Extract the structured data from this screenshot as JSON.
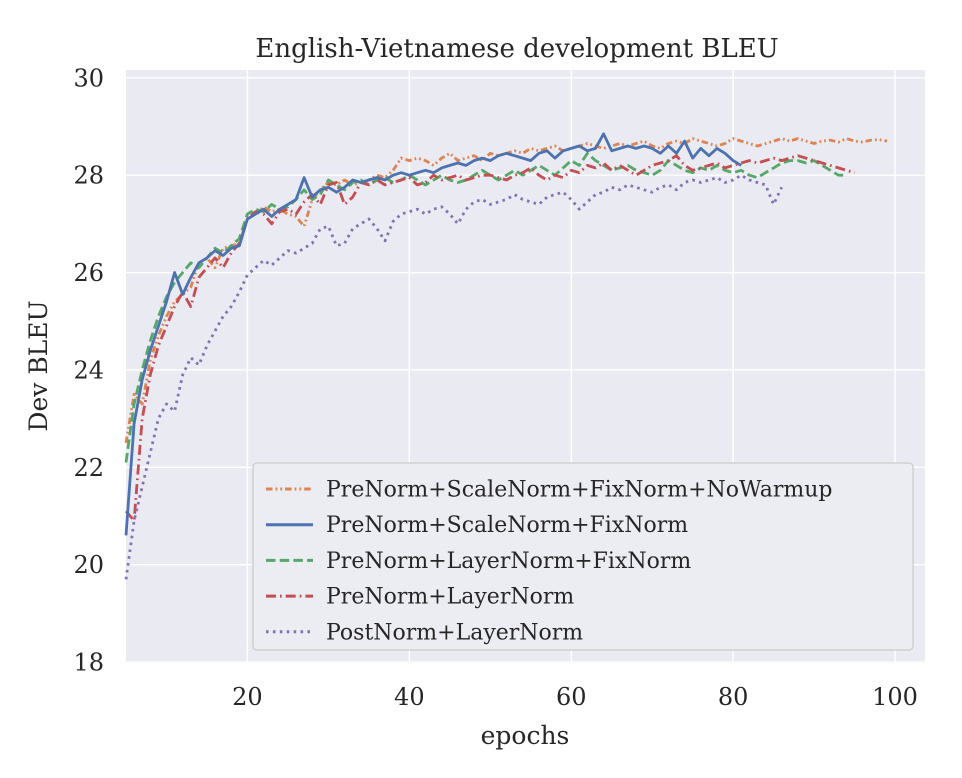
{
  "colors": {
    "figure_bg": "#ffffff",
    "plot_bg": "#eaeaf2",
    "grid": "#ffffff",
    "text": "#262626",
    "legend_bg": "#ececf3",
    "legend_border": "#cccccc"
  },
  "chart_data": {
    "type": "line",
    "title": "English-Vietnamese development BLEU",
    "xlabel": "epochs",
    "ylabel": "Dev BLEU",
    "xlim": [
      5,
      103.7
    ],
    "ylim": [
      17.98,
      30.16
    ],
    "xticks": [
      20,
      40,
      60,
      80,
      100
    ],
    "yticks": [
      18,
      20,
      22,
      24,
      26,
      28,
      30
    ],
    "grid": true,
    "legend_position": "inside lower center-right",
    "series": [
      {
        "name": "PreNorm+ScaleNorm+FixNorm+NoWarmup",
        "color": "#dd8452",
        "linestyle": "dashdotdot",
        "x_start": 5,
        "x_step": 1,
        "values": [
          22.5,
          23.5,
          23.3,
          24.2,
          24.7,
          25.1,
          25.4,
          25.55,
          25.7,
          26.2,
          26.3,
          26.1,
          26.5,
          26.55,
          26.6,
          27.1,
          27.2,
          27.35,
          27.25,
          27.3,
          27.2,
          27.15,
          26.95,
          27.5,
          27.7,
          27.85,
          27.8,
          27.9,
          27.8,
          27.85,
          27.9,
          28.0,
          27.95,
          28.1,
          28.35,
          28.3,
          28.35,
          28.3,
          28.2,
          28.35,
          28.45,
          28.3,
          28.35,
          28.4,
          28.3,
          28.45,
          28.4,
          28.45,
          28.5,
          28.45,
          28.55,
          28.5,
          28.55,
          28.6,
          28.5,
          28.55,
          28.6,
          28.65,
          28.6,
          28.55,
          28.6,
          28.65,
          28.6,
          28.65,
          28.7,
          28.6,
          28.55,
          28.65,
          28.7,
          28.65,
          28.75,
          28.7,
          28.65,
          28.6,
          28.65,
          28.75,
          28.7,
          28.65,
          28.6,
          28.65,
          28.7,
          28.75,
          28.7,
          28.75,
          28.7,
          28.65,
          28.7,
          28.72,
          28.68,
          28.75,
          28.7,
          28.68,
          28.72,
          28.73,
          28.7
        ]
      },
      {
        "name": "PreNorm+ScaleNorm+FixNorm",
        "color": "#4c72b0",
        "linestyle": "solid",
        "x_start": 5,
        "x_step": 1,
        "values": [
          20.6,
          22.9,
          23.8,
          24.4,
          24.9,
          25.4,
          26.0,
          25.55,
          25.9,
          26.2,
          26.3,
          26.45,
          26.35,
          26.5,
          26.55,
          27.1,
          27.2,
          27.3,
          27.15,
          27.3,
          27.4,
          27.5,
          27.95,
          27.55,
          27.7,
          27.75,
          27.65,
          27.75,
          27.9,
          27.85,
          27.9,
          27.95,
          27.9,
          28.0,
          28.05,
          28.0,
          28.05,
          28.1,
          28.05,
          28.15,
          28.2,
          28.25,
          28.2,
          28.3,
          28.35,
          28.3,
          28.4,
          28.45,
          28.4,
          28.35,
          28.3,
          28.45,
          28.5,
          28.35,
          28.5,
          28.55,
          28.6,
          28.5,
          28.55,
          28.85,
          28.5,
          28.55,
          28.6,
          28.55,
          28.6,
          28.55,
          28.45,
          28.6,
          28.45,
          28.7,
          28.35,
          28.55,
          28.4,
          28.55,
          28.45,
          28.3,
          28.2
        ]
      },
      {
        "name": "PreNorm+LayerNorm+FixNorm",
        "color": "#55a868",
        "linestyle": "dashed",
        "x_start": 5,
        "x_step": 1,
        "values": [
          22.1,
          23.3,
          24.0,
          24.6,
          25.1,
          25.5,
          25.8,
          26.0,
          26.2,
          26.1,
          26.3,
          26.5,
          26.4,
          26.55,
          26.7,
          27.2,
          27.3,
          27.25,
          27.4,
          27.3,
          27.35,
          27.5,
          27.7,
          27.5,
          27.6,
          27.9,
          27.8,
          27.7,
          27.85,
          27.9,
          27.8,
          27.9,
          27.95,
          27.85,
          27.9,
          28.0,
          27.9,
          27.8,
          27.9,
          28.0,
          27.9,
          27.85,
          27.9,
          28.0,
          28.1,
          28.0,
          27.9,
          28.0,
          28.1,
          28.0,
          28.1,
          28.2,
          28.1,
          28.0,
          28.15,
          28.3,
          28.2,
          28.45,
          28.3,
          28.2,
          28.1,
          28.15,
          28.2,
          28.1,
          28.05,
          28.0,
          28.1,
          28.3,
          28.2,
          28.1,
          28.05,
          28.15,
          28.1,
          28.2,
          28.1,
          28.05,
          28.1,
          28.0,
          27.95,
          28.05,
          28.15,
          28.25,
          28.3,
          28.3,
          28.25,
          28.3,
          28.2,
          28.1,
          28.0,
          28.0
        ]
      },
      {
        "name": "PreNorm+LayerNorm",
        "color": "#c44e52",
        "linestyle": "dashdot",
        "x_start": 5,
        "x_step": 1,
        "values": [
          21.1,
          20.9,
          23.0,
          23.9,
          24.5,
          24.9,
          25.3,
          25.6,
          25.3,
          25.9,
          26.1,
          26.3,
          26.1,
          26.4,
          26.6,
          27.1,
          27.25,
          27.2,
          27.0,
          27.25,
          27.3,
          27.2,
          27.45,
          27.6,
          27.4,
          27.8,
          27.85,
          27.4,
          27.55,
          27.85,
          27.8,
          27.9,
          27.8,
          27.85,
          27.9,
          27.95,
          27.8,
          27.85,
          28.0,
          27.9,
          27.95,
          28.0,
          27.9,
          27.95,
          28.0,
          28.0,
          27.95,
          27.9,
          28.0,
          28.05,
          28.15,
          28.0,
          27.9,
          28.0,
          27.95,
          28.1,
          28.05,
          28.2,
          28.15,
          28.25,
          28.1,
          28.2,
          28.1,
          28.0,
          28.1,
          28.2,
          28.25,
          28.3,
          28.4,
          28.2,
          28.1,
          28.15,
          28.2,
          28.25,
          28.15,
          28.2,
          28.25,
          28.3,
          28.25,
          28.3,
          28.35,
          28.3,
          28.35,
          28.4,
          28.35,
          28.3,
          28.25,
          28.2,
          28.15,
          28.1,
          28.05
        ]
      },
      {
        "name": "PostNorm+LayerNorm",
        "color": "#8172b3",
        "linestyle": "dotted",
        "x_start": 5,
        "x_step": 1,
        "values": [
          19.7,
          20.9,
          21.6,
          22.3,
          23.0,
          23.3,
          23.15,
          23.9,
          24.25,
          24.1,
          24.5,
          24.8,
          25.1,
          25.3,
          25.6,
          25.95,
          26.1,
          26.25,
          26.15,
          26.3,
          26.45,
          26.4,
          26.5,
          26.6,
          26.9,
          26.95,
          26.55,
          26.6,
          26.9,
          27.0,
          27.1,
          26.9,
          26.65,
          27.05,
          27.2,
          27.25,
          27.3,
          27.2,
          27.3,
          27.35,
          27.2,
          27.0,
          27.3,
          27.45,
          27.5,
          27.4,
          27.45,
          27.5,
          27.6,
          27.5,
          27.45,
          27.4,
          27.55,
          27.6,
          27.65,
          27.5,
          27.3,
          27.45,
          27.6,
          27.65,
          27.75,
          27.7,
          27.8,
          27.75,
          27.7,
          27.65,
          27.75,
          27.8,
          27.7,
          27.85,
          27.9,
          27.85,
          27.9,
          27.95,
          27.85,
          27.9,
          28.0,
          27.9,
          27.85,
          27.8,
          27.4,
          27.75
        ]
      }
    ]
  }
}
